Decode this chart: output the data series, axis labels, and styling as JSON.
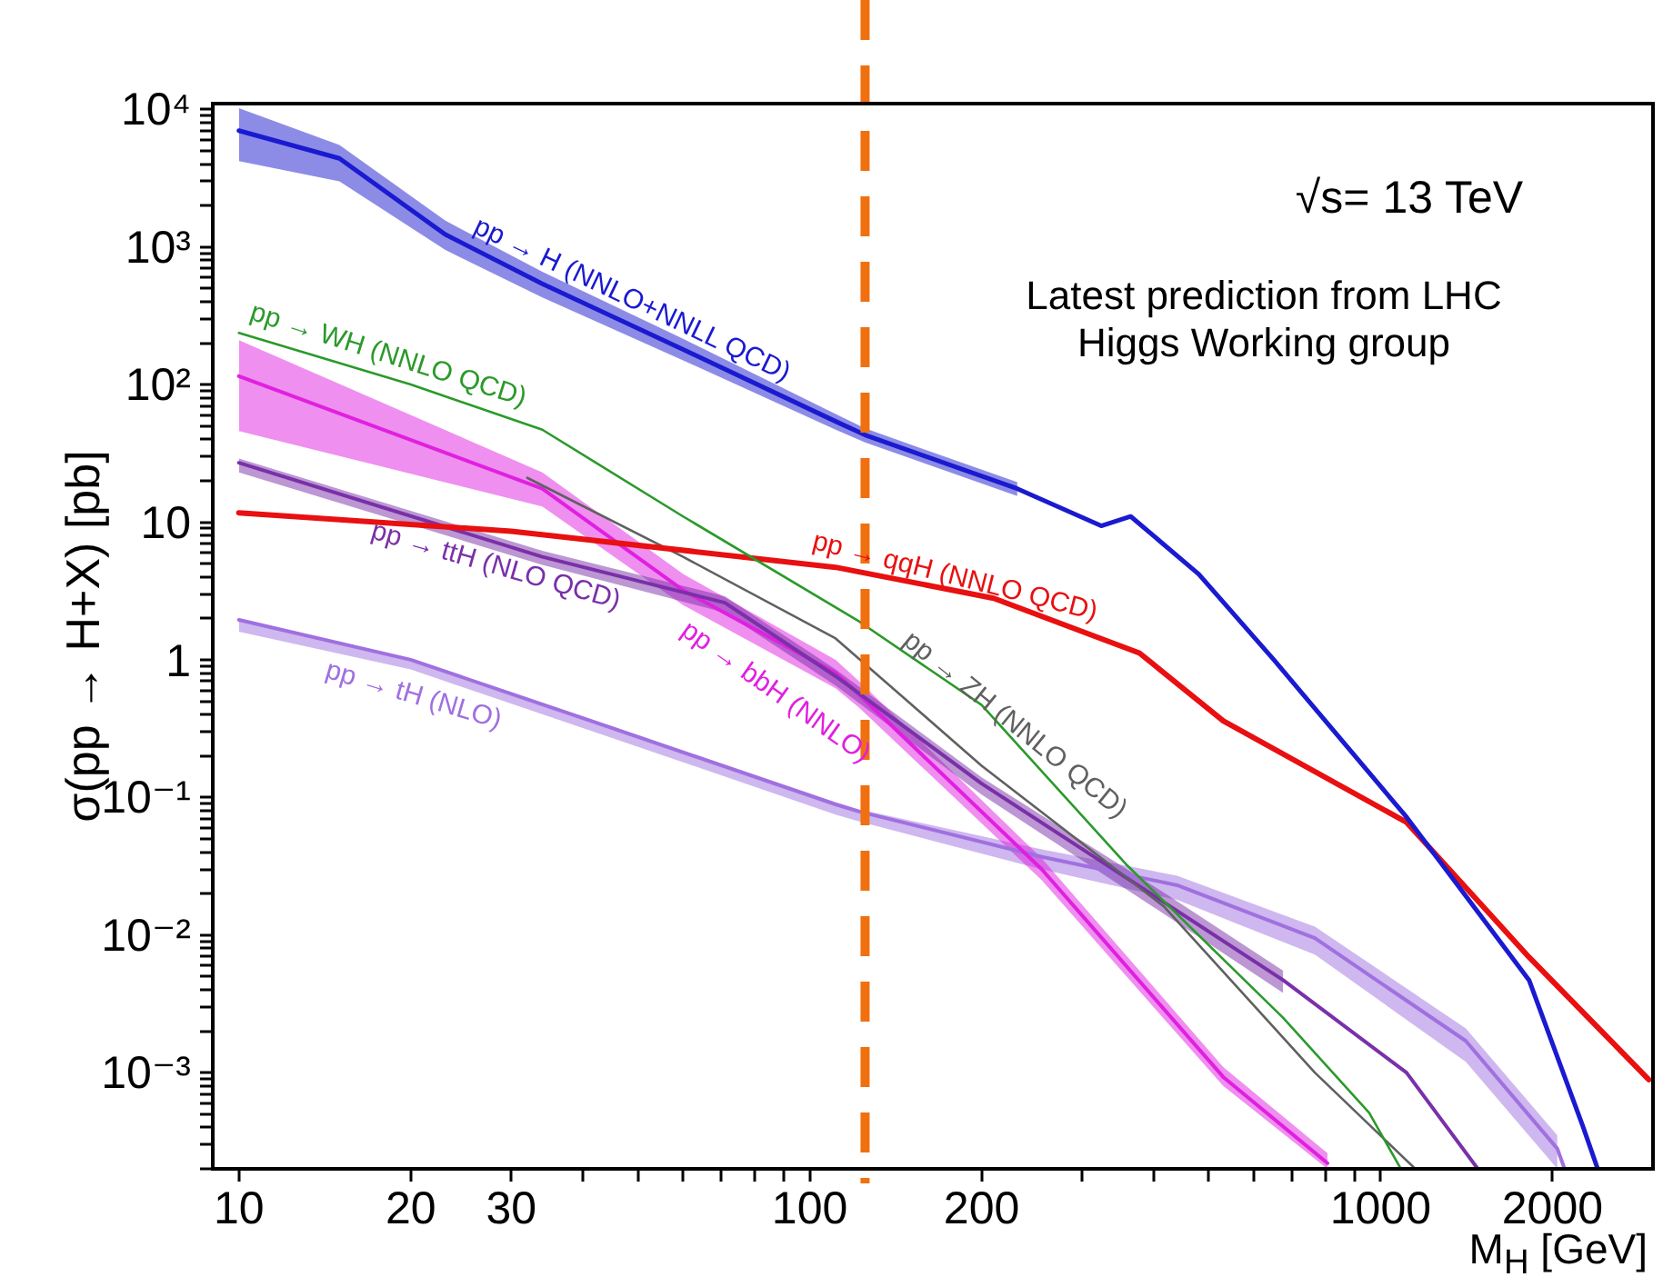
{
  "chart_data": {
    "type": "line",
    "xlabel": "M$_{H}$ [GeV]",
    "ylabel": "σ(pp → H+X) [pb]",
    "log": "xy",
    "grid": false,
    "annotations": [
      "√s= 13 TeV",
      "Latest prediction from LHC Higgs Working group"
    ],
    "xlim": [
      9,
      3000
    ],
    "ylim": [
      0.0002,
      11000
    ],
    "xticks": [
      10,
      20,
      30,
      {
        "value": 40,
        "label": null
      },
      {
        "value": 50,
        "label": null
      },
      {
        "value": 60,
        "label": null
      },
      {
        "value": 70,
        "label": null
      },
      {
        "value": 80,
        "label": null
      },
      {
        "value": 90,
        "label": null
      },
      100,
      200,
      {
        "value": 300,
        "label": null
      },
      {
        "value": 400,
        "label": null
      },
      {
        "value": 500,
        "label": null
      },
      {
        "value": 600,
        "label": null
      },
      {
        "value": 700,
        "label": null
      },
      {
        "value": 800,
        "label": null
      },
      {
        "value": 900,
        "label": null
      },
      1000,
      2000
    ],
    "yticks": [
      {
        "value": 0.0002,
        "label": null
      },
      {
        "value": 0.0003,
        "label": null
      },
      {
        "value": 0.0004,
        "label": null
      },
      {
        "value": 0.0005,
        "label": null
      },
      {
        "value": 0.0006,
        "label": null
      },
      {
        "value": 0.0007,
        "label": null
      },
      {
        "value": 0.0008,
        "label": null
      },
      {
        "value": 0.0009,
        "label": null
      },
      {
        "value": 0.001,
        "label": "10⁻³"
      },
      {
        "value": 0.002,
        "label": null
      },
      {
        "value": 0.003,
        "label": null
      },
      {
        "value": 0.004,
        "label": null
      },
      {
        "value": 0.005,
        "label": null
      },
      {
        "value": 0.006,
        "label": null
      },
      {
        "value": 0.007,
        "label": null
      },
      {
        "value": 0.008,
        "label": null
      },
      {
        "value": 0.009,
        "label": null
      },
      {
        "value": 0.01,
        "label": "10⁻²"
      },
      {
        "value": 0.02,
        "label": null
      },
      {
        "value": 0.03,
        "label": null
      },
      {
        "value": 0.04,
        "label": null
      },
      {
        "value": 0.05,
        "label": null
      },
      {
        "value": 0.06,
        "label": null
      },
      {
        "value": 0.07,
        "label": null
      },
      {
        "value": 0.08,
        "label": null
      },
      {
        "value": 0.09,
        "label": null
      },
      {
        "value": 0.1,
        "label": "10⁻¹"
      },
      {
        "value": 0.2,
        "label": null
      },
      {
        "value": 0.3,
        "label": null
      },
      {
        "value": 0.4,
        "label": null
      },
      {
        "value": 0.5,
        "label": null
      },
      {
        "value": 0.6,
        "label": null
      },
      {
        "value": 0.7,
        "label": null
      },
      {
        "value": 0.8,
        "label": null
      },
      {
        "value": 0.9,
        "label": null
      },
      1,
      {
        "value": 2,
        "label": null
      },
      {
        "value": 3,
        "label": null
      },
      {
        "value": 4,
        "label": null
      },
      {
        "value": 5,
        "label": null
      },
      {
        "value": 6,
        "label": null
      },
      {
        "value": 7,
        "label": null
      },
      {
        "value": 8,
        "label": null
      },
      {
        "value": 9,
        "label": null
      },
      10,
      {
        "value": 20,
        "label": null
      },
      {
        "value": 30,
        "label": null
      },
      {
        "value": 40,
        "label": null
      },
      {
        "value": 50,
        "label": null
      },
      {
        "value": 60,
        "label": null
      },
      {
        "value": 70,
        "label": null
      },
      {
        "value": 80,
        "label": null
      },
      {
        "value": 90,
        "label": null
      },
      {
        "value": 100,
        "label": "10²"
      },
      {
        "value": 200,
        "label": null
      },
      {
        "value": 300,
        "label": null
      },
      {
        "value": 400,
        "label": null
      },
      {
        "value": 500,
        "label": null
      },
      {
        "value": 600,
        "label": null
      },
      {
        "value": 700,
        "label": null
      },
      {
        "value": 800,
        "label": null
      },
      {
        "value": 900,
        "label": null
      },
      {
        "value": 1000,
        "label": "10³"
      },
      {
        "value": 2000,
        "label": null
      },
      {
        "value": 3000,
        "label": null
      },
      {
        "value": 4000,
        "label": null
      },
      {
        "value": 5000,
        "label": null
      },
      {
        "value": 6000,
        "label": null
      },
      {
        "value": 7000,
        "label": null
      },
      {
        "value": 8000,
        "label": null
      },
      {
        "value": 9000,
        "label": null
      },
      {
        "value": 10000,
        "label": "10⁴"
      }
    ],
    "ref_lines": [
      {
        "axis": "x",
        "value": 125,
        "color": "#f07010",
        "line_style": "dashed"
      }
    ],
    "series": [
      {
        "name": "pp → H (NNLO+NNLL QCD)",
        "color": "#1a1ad0",
        "x": [
          10,
          15,
          23,
          34,
          60,
          111,
          125,
          231,
          324,
          365,
          480,
          650,
          1110,
          1820,
          2260,
          2400
        ],
        "values": [
          7000,
          4400,
          1230,
          540,
          180,
          54,
          43,
          17.5,
          9.4,
          11,
          4.2,
          1.0,
          0.072,
          0.0047,
          0.00041,
          0.0002
        ],
        "lower": [
          4200,
          3000,
          950,
          430,
          150,
          47,
          38,
          15.5,
          null,
          null,
          null,
          null,
          null,
          null,
          null,
          null
        ],
        "upper": [
          10200,
          5500,
          1550,
          660,
          215,
          61,
          48,
          19.5,
          null,
          null,
          null,
          null,
          null,
          null,
          null,
          null
        ]
      },
      {
        "name": "pp → WH (NNLO QCD)",
        "color": "#2a9a2a",
        "x": [
          10,
          20,
          34,
          60,
          122,
          200,
          360,
          675,
          955,
          1085
        ],
        "values": [
          237,
          100,
          47,
          11,
          1.9,
          0.47,
          0.032,
          0.0025,
          0.00051,
          0.0002
        ]
      },
      {
        "name": "pp → qqH (NNLO QCD)",
        "color": "#e81010",
        "x": [
          10,
          30,
          111,
          210,
          378,
          530,
          1110,
          1820,
          2950
        ],
        "values": [
          11.7,
          8.6,
          4.7,
          2.8,
          1.12,
          0.36,
          0.066,
          0.0069,
          0.00089
        ]
      },
      {
        "name": "pp → ZH (NNLO QCD)",
        "color": "#606060",
        "x": [
          32,
          60,
          111,
          200,
          418,
          767,
          1150
        ],
        "values": [
          21,
          5.6,
          1.43,
          0.17,
          0.016,
          0.001,
          0.0002
        ]
      },
      {
        "name": "pp → ttH (NLO QCD)",
        "color": "#7a30a8",
        "x": [
          10,
          34,
          71,
          111,
          200,
          420,
          675,
          1110,
          1480
        ],
        "values": [
          27,
          5.6,
          2.6,
          0.76,
          0.126,
          0.017,
          0.0047,
          0.001,
          0.0002
        ],
        "lower": [
          23,
          4.9,
          2.2,
          0.65,
          0.105,
          0.014,
          0.0038,
          null,
          null
        ],
        "upper": [
          29,
          6.2,
          2.9,
          0.85,
          0.14,
          0.02,
          0.0055,
          null,
          null
        ]
      },
      {
        "name": "pp → bbH (NNLO)",
        "color": "#e020e0",
        "x": [
          10,
          34,
          60,
          111,
          122,
          255,
          530,
          807
        ],
        "values": [
          115,
          17.5,
          3.2,
          0.8,
          0.56,
          0.03,
          0.00093,
          0.00022
        ],
        "lower": [
          46,
          13,
          2.5,
          0.62,
          0.45,
          0.025,
          0.0008,
          0.0002
        ],
        "upper": [
          210,
          23,
          4.2,
          1.0,
          0.7,
          0.036,
          0.0011,
          0.00026
        ]
      },
      {
        "name": "pp → tH (NLO)",
        "color": "#a070e0",
        "x": [
          10,
          20,
          44,
          111,
          122,
          255,
          440,
          767,
          1410,
          2040,
          2100
        ],
        "values": [
          1.95,
          1.0,
          0.33,
          0.089,
          0.079,
          0.037,
          0.023,
          0.0095,
          0.0017,
          0.00028,
          0.0002
        ],
        "lower": [
          1.6,
          0.85,
          0.28,
          0.075,
          0.067,
          0.03,
          0.018,
          0.0072,
          0.0012,
          0.0002,
          null
        ],
        "upper": [
          2.0,
          1.02,
          0.34,
          0.092,
          0.082,
          0.042,
          0.027,
          0.0115,
          0.0021,
          0.00035,
          null
        ]
      }
    ]
  }
}
